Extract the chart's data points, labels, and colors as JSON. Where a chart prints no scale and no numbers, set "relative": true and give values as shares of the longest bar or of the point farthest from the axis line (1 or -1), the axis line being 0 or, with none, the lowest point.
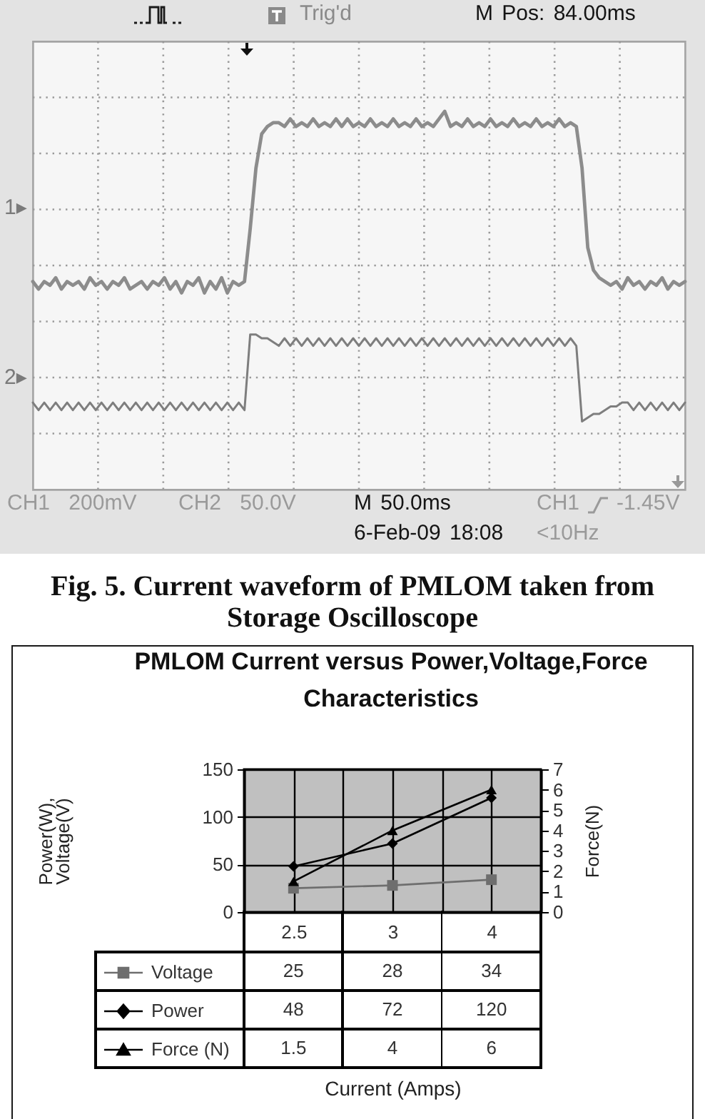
{
  "chart_data": [
    {
      "type": "line",
      "relative": true,
      "categories": [
        null,
        null,
        null,
        null,
        null,
        null,
        null,
        null,
        null,
        null,
        null,
        null,
        null,
        null,
        null,
        null,
        null,
        null,
        null,
        null,
        null,
        null,
        null,
        null,
        null,
        null,
        null,
        null,
        null,
        null,
        null,
        null,
        null,
        null,
        null,
        null,
        null,
        null,
        null,
        null,
        null,
        null,
        null,
        null,
        null,
        null,
        null,
        null,
        null,
        null,
        null,
        null,
        null,
        null,
        null,
        null,
        null,
        null,
        null,
        null,
        null,
        null,
        null,
        null,
        null,
        null,
        null,
        null,
        null,
        null,
        null,
        null,
        null,
        null,
        null,
        null,
        null,
        null,
        null,
        null,
        null,
        null,
        null,
        null,
        null,
        null,
        null,
        null,
        null,
        null,
        null,
        null,
        null,
        null,
        null,
        null,
        null,
        null,
        null,
        null,
        null,
        null,
        null,
        null,
        null,
        null,
        null,
        null,
        null,
        null,
        null,
        null,
        null,
        null,
        null
      ],
      "series": [
        {
          "color": "#8c8c8c",
          "values": [
            0.55,
            0.53,
            0.55,
            0.54,
            0.56,
            0.53,
            0.55,
            0.54,
            0.55,
            0.53,
            0.56,
            0.54,
            0.55,
            0.53,
            0.55,
            0.54,
            0.56,
            0.53,
            0.54,
            0.55,
            0.53,
            0.55,
            0.54,
            0.56,
            0.53,
            0.55,
            0.52,
            0.55,
            0.54,
            0.56,
            0.52,
            0.55,
            0.53,
            0.56,
            0.52,
            0.55,
            0.54,
            0.55,
            0.69,
            0.85,
            0.94,
            0.96,
            0.97,
            0.97,
            0.96,
            0.98,
            0.96,
            0.97,
            0.96,
            0.98,
            0.96,
            0.97,
            0.96,
            0.98,
            0.96,
            0.98,
            0.96,
            0.97,
            0.96,
            0.98,
            0.96,
            0.97,
            0.96,
            0.98,
            0.96,
            0.97,
            0.96,
            0.98,
            0.96,
            0.97,
            0.96,
            0.98,
            1.0,
            0.96,
            0.97,
            0.96,
            0.98,
            0.96,
            0.97,
            0.96,
            0.98,
            0.96,
            0.97,
            0.96,
            0.98,
            0.96,
            0.97,
            0.96,
            0.98,
            0.96,
            0.97,
            0.96,
            0.98,
            0.96,
            0.97,
            0.96,
            0.85,
            0.64,
            0.58,
            0.56,
            0.55,
            0.54,
            0.55,
            0.53,
            0.56,
            0.54,
            0.55,
            0.53,
            0.55,
            0.54,
            0.56,
            0.53,
            0.55,
            0.54,
            0.55
          ]
        },
        {
          "color": "#7e7e7e",
          "values": [
            0.23,
            0.21,
            0.23,
            0.21,
            0.23,
            0.21,
            0.23,
            0.21,
            0.23,
            0.21,
            0.23,
            0.21,
            0.23,
            0.21,
            0.23,
            0.21,
            0.23,
            0.21,
            0.23,
            0.21,
            0.23,
            0.21,
            0.23,
            0.21,
            0.23,
            0.21,
            0.23,
            0.21,
            0.23,
            0.21,
            0.23,
            0.21,
            0.23,
            0.21,
            0.23,
            0.21,
            0.23,
            0.21,
            0.41,
            0.41,
            0.4,
            0.4,
            0.39,
            0.38,
            0.4,
            0.38,
            0.4,
            0.38,
            0.4,
            0.38,
            0.4,
            0.38,
            0.4,
            0.38,
            0.4,
            0.38,
            0.4,
            0.38,
            0.4,
            0.38,
            0.4,
            0.38,
            0.4,
            0.38,
            0.4,
            0.38,
            0.4,
            0.38,
            0.4,
            0.38,
            0.4,
            0.38,
            0.4,
            0.38,
            0.4,
            0.38,
            0.4,
            0.38,
            0.4,
            0.38,
            0.4,
            0.38,
            0.4,
            0.38,
            0.4,
            0.38,
            0.4,
            0.38,
            0.4,
            0.38,
            0.4,
            0.38,
            0.4,
            0.38,
            0.4,
            0.38,
            0.18,
            0.19,
            0.2,
            0.2,
            0.21,
            0.22,
            0.22,
            0.23,
            0.23,
            0.21,
            0.23,
            0.21,
            0.23,
            0.21,
            0.23,
            0.21,
            0.23,
            0.21,
            0.23
          ]
        }
      ],
      "grid": true,
      "annotations": [
        "Trig'd",
        "M Pos: 84.00ms",
        "CH1 200mV",
        "CH2 50.0V",
        "M 50.0ms",
        "CH1",
        "-1.45V",
        "6-Feb-09 18:08",
        "<10Hz",
        "1▸",
        "2▸",
        "Fig. 5. Current waveform of PMLOM taken from Storage Oscilloscope"
      ]
    },
    {
      "type": "line",
      "title": "PMLOM Current versus Power,Voltage,Force Characteristics",
      "xlabel": "Current (Amps)",
      "ylabel": "Power(W), Voltage(V)",
      "y2label": "Force(N)",
      "categories": [
        "2.5",
        "3",
        "4"
      ],
      "series": [
        {
          "name": "Voltage",
          "color": "#6e6e6e",
          "marker": "square",
          "values": [
            25,
            28,
            34
          ]
        },
        {
          "name": "Power",
          "color": "#000000",
          "marker": "diamond",
          "values": [
            48,
            72,
            120
          ]
        },
        {
          "name": "Force (N)",
          "color": "#000000",
          "marker": "triangle",
          "axis": "y2",
          "values": [
            1.5,
            4,
            6
          ]
        }
      ],
      "ylim": [
        0,
        150
      ],
      "yticks": [
        0,
        50,
        100,
        150
      ],
      "y2lim": [
        0,
        7
      ],
      "y2ticks": [
        0,
        1,
        2,
        3,
        4,
        5,
        6,
        7
      ],
      "grid": true,
      "legend": "bottom",
      "data_labels": true
    }
  ]
}
